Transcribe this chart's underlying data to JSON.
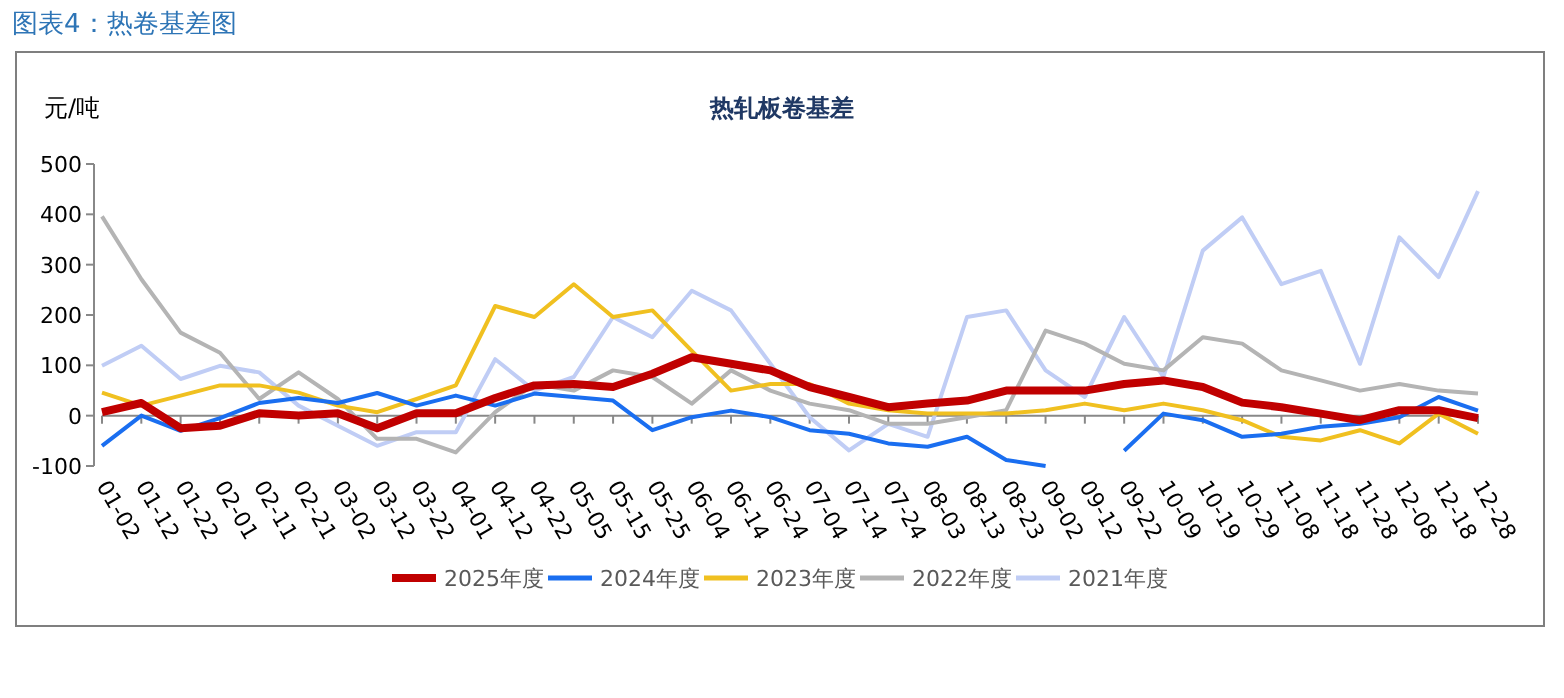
{
  "chart_data": {
    "type": "line",
    "title": "热轧板卷基差",
    "ylabel": "元/吨",
    "annotations": [
      "图表4：热卷基差图"
    ],
    "categories": [
      "01-02",
      "01-12",
      "01-22",
      "02-01",
      "02-11",
      "02-21",
      "03-02",
      "03-12",
      "03-22",
      "04-01",
      "04-12",
      "04-22",
      "05-05",
      "05-15",
      "05-25",
      "06-04",
      "06-14",
      "06-24",
      "07-04",
      "07-14",
      "07-24",
      "08-03",
      "08-13",
      "08-23",
      "09-02",
      "09-12",
      "09-22",
      "10-09",
      "10-19",
      "10-29",
      "11-08",
      "11-18",
      "11-28",
      "12-08",
      "12-18",
      "12-28"
    ],
    "ylim": [
      -100,
      500
    ],
    "yticks": [
      -100,
      0,
      100,
      200,
      300,
      400,
      500
    ],
    "legend": "bottom",
    "series": [
      {
        "name": "2025年度",
        "color": "#c00000",
        "values": [
          7,
          25,
          -25,
          -20,
          5,
          0,
          5,
          -25,
          5,
          5,
          35,
          60,
          63,
          57,
          83,
          116,
          103,
          90,
          57,
          37,
          17,
          24,
          30,
          50,
          50,
          50,
          63,
          70,
          57,
          26,
          17,
          4,
          -9,
          11,
          11,
          -5
        ]
      },
      {
        "name": "2024年度",
        "color": "#1a6ef0",
        "values": [
          -60,
          0,
          -30,
          -5,
          25,
          35,
          25,
          45,
          20,
          40,
          20,
          44,
          37,
          30,
          -29,
          -3,
          10,
          -3,
          -29,
          -36,
          -55,
          -62,
          -42,
          -88,
          -100,
          null,
          -70,
          4,
          -9,
          -42,
          -36,
          -22,
          -16,
          -3,
          37,
          10
        ]
      },
      {
        "name": "2023年度",
        "color": "#f0c020",
        "values": [
          46,
          20,
          40,
          60,
          60,
          46,
          20,
          7,
          33,
          60,
          218,
          196,
          261,
          196,
          209,
          129,
          50,
          63,
          63,
          24,
          11,
          4,
          4,
          4,
          11,
          24,
          11,
          24,
          11,
          -9,
          -42,
          -49,
          -29,
          -55,
          4,
          -36
        ]
      },
      {
        "name": "2022年度",
        "color": "#b4b4b4",
        "values": [
          396,
          271,
          165,
          125,
          33,
          86,
          33,
          -46,
          -46,
          -73,
          7,
          63,
          50,
          90,
          77,
          24,
          90,
          50,
          24,
          11,
          -16,
          -16,
          -3,
          11,
          169,
          143,
          103,
          90,
          156,
          143,
          90,
          70,
          50,
          63,
          50,
          44
        ]
      },
      {
        "name": "2021年度",
        "color": "#c0cdf5",
        "values": [
          99,
          139,
          73,
          99,
          86,
          20,
          -20,
          -60,
          -33,
          -33,
          112,
          50,
          77,
          196,
          156,
          248,
          209,
          103,
          -3,
          -69,
          -16,
          -42,
          196,
          209,
          90,
          37,
          196,
          77,
          328,
          394,
          261,
          288,
          103,
          354,
          275,
          446
        ]
      }
    ]
  }
}
